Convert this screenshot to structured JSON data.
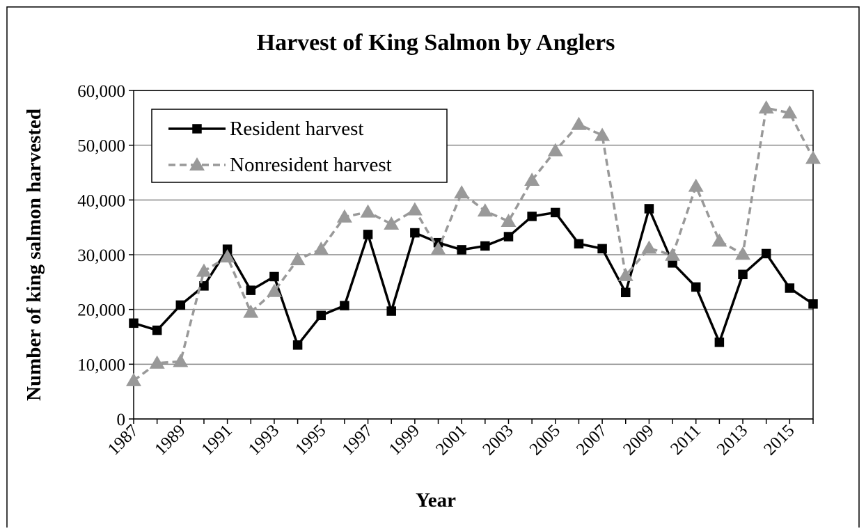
{
  "chart_data": {
    "type": "line",
    "title": "Harvest of King Salmon by Anglers",
    "xlabel": "Year",
    "ylabel": "Number of king salmon harvested",
    "x": [
      1987,
      1988,
      1989,
      1990,
      1991,
      1992,
      1993,
      1994,
      1995,
      1996,
      1997,
      1998,
      1999,
      2000,
      2001,
      2002,
      2003,
      2004,
      2005,
      2006,
      2007,
      2008,
      2009,
      2010,
      2011,
      2012,
      2013,
      2014,
      2015,
      2016
    ],
    "xlim": [
      1987,
      2016
    ],
    "xticks": [
      1987,
      1989,
      1991,
      1993,
      1995,
      1997,
      1999,
      2001,
      2003,
      2005,
      2007,
      2009,
      2011,
      2013,
      2015
    ],
    "ylim": [
      0,
      60000
    ],
    "yticks": [
      0,
      {
        "value": 10000,
        "label": "10,000"
      },
      {
        "value": 20000,
        "label": "20,000"
      },
      {
        "value": 30000,
        "label": "30,000"
      },
      {
        "value": 40000,
        "label": "40,000"
      },
      {
        "value": 50000,
        "label": "50,000"
      },
      {
        "value": 60000,
        "label": "60,000"
      }
    ],
    "grid": true,
    "legend": "upper left",
    "series": [
      {
        "name": "Resident harvest",
        "color": "#000000",
        "marker": "square",
        "line_style": "solid",
        "values": [
          17500,
          16200,
          20800,
          24300,
          31000,
          23500,
          26000,
          13500,
          18900,
          20700,
          33700,
          19700,
          34000,
          32200,
          30900,
          31600,
          33300,
          37000,
          37700,
          32000,
          31100,
          23100,
          38400,
          28500,
          24100,
          14000,
          26400,
          30200,
          23900,
          21000
        ]
      },
      {
        "name": "Nonresident harvest",
        "color": "#999999",
        "marker": "triangle",
        "line_style": "dashed",
        "values": [
          7000,
          10200,
          10500,
          27000,
          29600,
          19500,
          23300,
          29100,
          31000,
          36900,
          37800,
          35600,
          38200,
          31000,
          41300,
          38000,
          36100,
          43600,
          49000,
          53800,
          51800,
          26200,
          31200,
          29900,
          42500,
          32500,
          30100,
          56800,
          55900,
          47600
        ]
      }
    ]
  }
}
